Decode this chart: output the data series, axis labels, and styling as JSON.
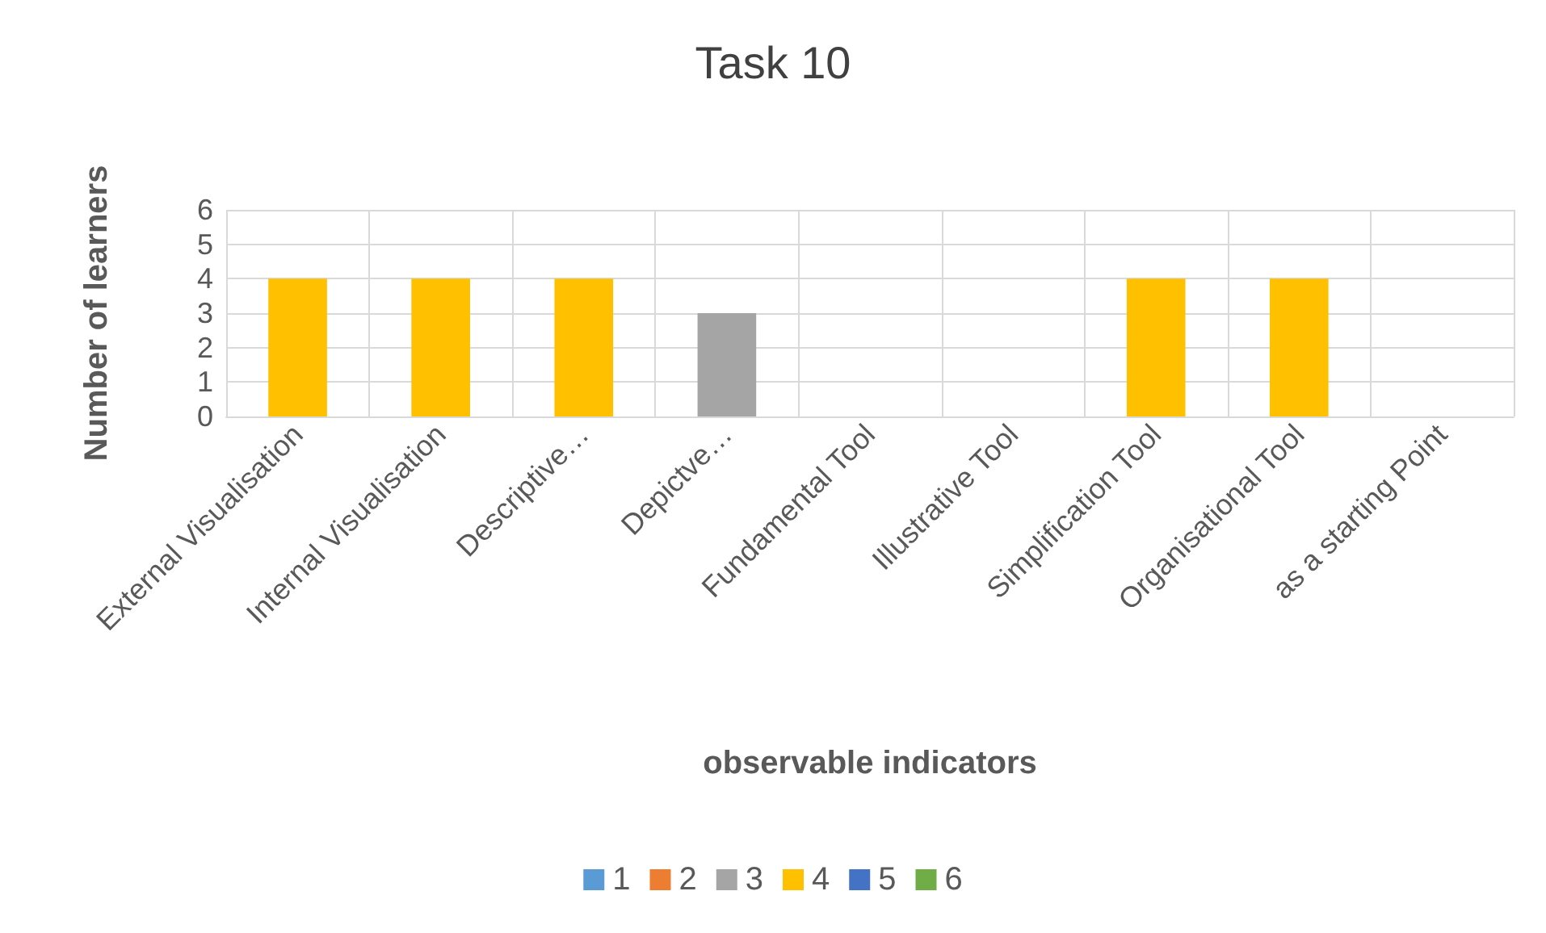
{
  "chart_data": {
    "type": "bar",
    "title": "Task 10",
    "xlabel": "observable indicators",
    "ylabel": "Number of learners",
    "categories": [
      "External Visualisation",
      "Internal Visualisation",
      "Descriptive…",
      "Depictve…",
      "Fundamental Tool",
      "Illustrative Tool",
      "Simplification Tool",
      "Organisational Tool",
      "as a starting Point"
    ],
    "stacked": true,
    "series": [
      {
        "name": "1",
        "color": "#5b9bd5",
        "values": [
          null,
          null,
          null,
          null,
          null,
          null,
          null,
          null,
          null
        ]
      },
      {
        "name": "2",
        "color": "#ed7d31",
        "values": [
          null,
          null,
          null,
          null,
          null,
          null,
          null,
          null,
          null
        ]
      },
      {
        "name": "3",
        "color": "#a5a5a5",
        "values": [
          null,
          null,
          null,
          3,
          null,
          null,
          null,
          null,
          null
        ]
      },
      {
        "name": "4",
        "color": "#ffc000",
        "values": [
          4,
          4,
          4,
          null,
          null,
          null,
          4,
          4,
          null
        ]
      },
      {
        "name": "5",
        "color": "#4472c4",
        "values": [
          null,
          null,
          null,
          null,
          null,
          null,
          null,
          null,
          null
        ]
      },
      {
        "name": "6",
        "color": "#70ad47",
        "values": [
          null,
          null,
          null,
          null,
          null,
          null,
          null,
          null,
          null
        ]
      }
    ],
    "ylim": [
      0,
      6
    ],
    "yticks": [
      0,
      1,
      2,
      3,
      4,
      5,
      6
    ],
    "grid": true,
    "legend": "bottom"
  }
}
